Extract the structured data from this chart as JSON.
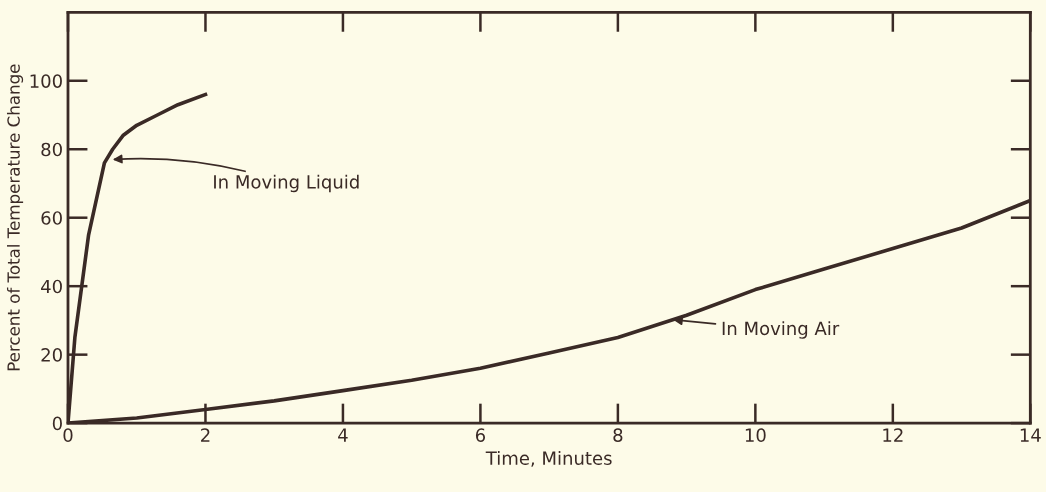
{
  "chart_data": {
    "type": "line",
    "xlabel": "Time, Minutes",
    "ylabel": "Percent of Total Temperature Change",
    "xlim": [
      0,
      14
    ],
    "xticks": [
      0,
      2,
      4,
      6,
      8,
      10,
      12,
      14
    ],
    "ylim": [
      0,
      120
    ],
    "yticks": [
      0,
      20,
      40,
      60,
      80,
      100
    ],
    "grid": false,
    "legend": false,
    "marker": "none",
    "line_style": "solid",
    "series": [
      {
        "color": "#3a2a26",
        "x": [
          0,
          0.1,
          0.3,
          0.53,
          0.65,
          0.8,
          1.0,
          1.3,
          1.6,
          2.0
        ],
        "values": [
          0,
          25,
          55,
          76,
          80,
          84,
          87,
          90,
          93,
          96
        ]
      },
      {
        "color": "#3a2a26",
        "x": [
          0,
          1,
          2,
          3,
          4,
          5,
          6,
          7,
          8,
          9,
          10,
          11,
          12,
          13,
          14
        ],
        "values": [
          0,
          1.5,
          4,
          6.5,
          9.5,
          12.5,
          16,
          20.5,
          25,
          31.5,
          39,
          45,
          51,
          57,
          65
        ]
      }
    ],
    "annotations": [
      {
        "text": "In Moving Liquid",
        "x": 0.65,
        "y": 77
      },
      {
        "text": "In Moving Air",
        "x": 8.8,
        "y": 30.2
      }
    ]
  }
}
